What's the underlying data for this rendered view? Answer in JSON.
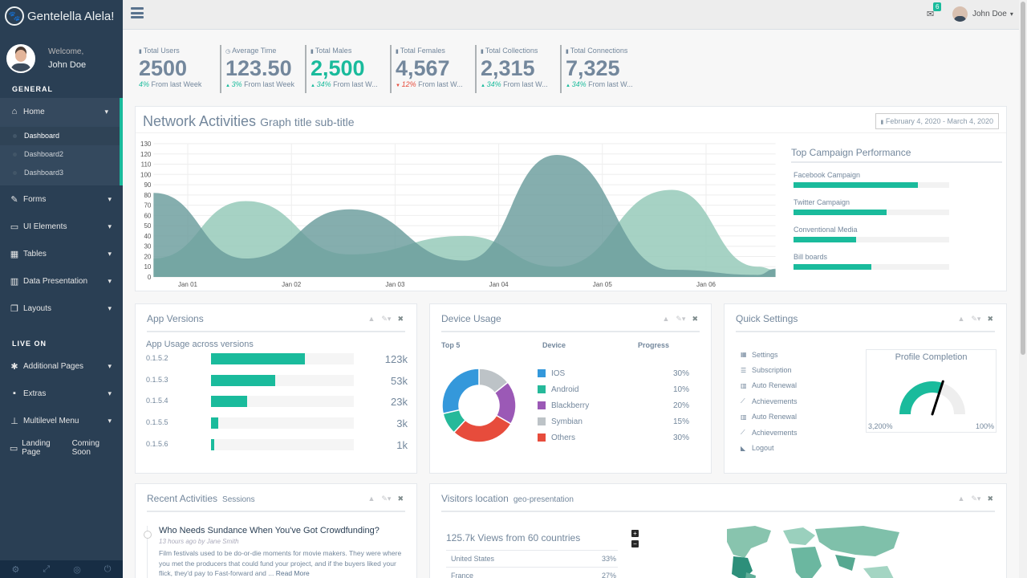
{
  "sidebar": {
    "brand": "Gentelella Alela!",
    "welcome": "Welcome,",
    "user": "John Doe",
    "section_general": "GENERAL",
    "section_live": "LIVE ON",
    "home": "Home",
    "sub_items": [
      "Dashboard",
      "Dashboard2",
      "Dashboard3"
    ],
    "general_items": [
      "Forms",
      "UI Elements",
      "Tables",
      "Data Presentation",
      "Layouts"
    ],
    "live_items": [
      "Additional Pages",
      "Extras",
      "Multilevel Menu"
    ],
    "landing": "Landing Page",
    "landing_badge": "Coming Soon"
  },
  "topnav": {
    "mail_count": "6",
    "user": "John Doe"
  },
  "tiles": [
    {
      "label": "Total Users",
      "icon": "user-icon",
      "count": "2500",
      "pct": "4%",
      "bottom": " From last Week",
      "dir": "none",
      "green": false
    },
    {
      "label": "Average Time",
      "icon": "clock-icon",
      "count": "123.50",
      "pct": "3%",
      "bottom": " From last Week",
      "dir": "up",
      "green": false
    },
    {
      "label": "Total Males",
      "icon": "user-icon",
      "count": "2,500",
      "pct": "34%",
      "bottom": " From last W...",
      "dir": "up",
      "green": true
    },
    {
      "label": "Total Females",
      "icon": "user-icon",
      "count": "4,567",
      "pct": "12%",
      "bottom": " From last W...",
      "dir": "down",
      "green": false
    },
    {
      "label": "Total Collections",
      "icon": "user-icon",
      "count": "2,315",
      "pct": "34%",
      "bottom": " From last W...",
      "dir": "up",
      "green": false
    },
    {
      "label": "Total Connections",
      "icon": "user-icon",
      "count": "7,325",
      "pct": "34%",
      "bottom": " From last W...",
      "dir": "up",
      "green": false
    }
  ],
  "network": {
    "title": "Network Activities",
    "subtitle": "Graph title sub-title",
    "daterange": "February 4, 2020 - March 4, 2020"
  },
  "chart_data": {
    "type": "area",
    "title": "",
    "xlabel": "",
    "ylabel": "",
    "ylim": [
      0,
      130
    ],
    "y_ticks": [
      0,
      10,
      20,
      30,
      40,
      50,
      60,
      70,
      80,
      90,
      100,
      110,
      120,
      130
    ],
    "x_tick_labels": [
      "Jan 01",
      "Jan 02",
      "Jan 03",
      "Jan 04",
      "Jan 05",
      "Jan 06"
    ],
    "grid": true,
    "series": [
      {
        "color": "#96caba",
        "points": [
          [
            -0.33,
            18
          ],
          [
            0.56,
            74
          ],
          [
            1.56,
            22
          ],
          [
            2.67,
            40
          ],
          [
            3.56,
            10
          ],
          [
            4.67,
            85
          ],
          [
            5.5,
            10
          ],
          [
            5.67,
            7
          ]
        ]
      },
      {
        "color": "#6a9c9c",
        "points": [
          [
            -0.33,
            82
          ],
          [
            0.56,
            18
          ],
          [
            1.56,
            66
          ],
          [
            2.67,
            16
          ],
          [
            3.56,
            119
          ],
          [
            4.67,
            7
          ],
          [
            5.5,
            2
          ],
          [
            5.67,
            8
          ]
        ]
      }
    ]
  },
  "campaign": {
    "title": "Top Campaign Performance",
    "items": [
      {
        "label": "Facebook Campaign",
        "value": 80
      },
      {
        "label": "Twitter Campaign",
        "value": 60
      },
      {
        "label": "Conventional Media",
        "value": 40
      },
      {
        "label": "Bill boards",
        "value": 50
      }
    ]
  },
  "app_versions": {
    "title": "App Versions",
    "subtitle": "App Usage across versions",
    "items": [
      {
        "version": "0.1.5.2",
        "value": "123k",
        "pct": 66
      },
      {
        "version": "0.1.5.3",
        "value": "53k",
        "pct": 45
      },
      {
        "version": "0.1.5.4",
        "value": "23k",
        "pct": 25
      },
      {
        "version": "0.1.5.5",
        "value": "3k",
        "pct": 5
      },
      {
        "version": "0.1.5.6",
        "value": "1k",
        "pct": 2
      }
    ]
  },
  "device_usage": {
    "title": "Device Usage",
    "col_top": "Top 5",
    "col_device": "Device",
    "col_progress": "Progress",
    "items": [
      {
        "name": "IOS",
        "pct": "30%",
        "value": 30,
        "color": "#3498db"
      },
      {
        "name": "Android",
        "pct": "10%",
        "value": 10,
        "color": "#26b99a"
      },
      {
        "name": "Blackberry",
        "pct": "20%",
        "value": 20,
        "color": "#9b59b6"
      },
      {
        "name": "Symbian",
        "pct": "15%",
        "value": 15,
        "color": "#bdc3c7"
      },
      {
        "name": "Others",
        "pct": "30%",
        "value": 30,
        "color": "#e74c3c"
      }
    ]
  },
  "quick_settings": {
    "title": "Quick Settings",
    "items": [
      {
        "label": "Settings",
        "icon": "calendar-icon"
      },
      {
        "label": "Subscription",
        "icon": "list-icon"
      },
      {
        "label": "Auto Renewal",
        "icon": "bar-chart-icon"
      },
      {
        "label": "Achievements",
        "icon": "line-chart-icon"
      },
      {
        "label": "Auto Renewal",
        "icon": "bar-chart-icon"
      },
      {
        "label": "Achievements",
        "icon": "line-chart-icon"
      },
      {
        "label": "Logout",
        "icon": "area-chart-icon"
      }
    ],
    "profile_title": "Profile Completion",
    "gauge_min": "3,200%",
    "gauge_max": "100%",
    "gauge_level": 0.6
  },
  "recent": {
    "title": "Recent Activities",
    "subtitle": "Sessions",
    "item_title": "Who Needs Sundance When You've Got Crowdfunding?",
    "item_byline": "13 hours ago by Jane Smith",
    "item_text": "Film festivals used to be do-or-die moments for movie makers. They were where you met the producers that could fund your project, and if the buyers liked your flick, they'd pay to Fast-forward and ...",
    "item_more": "Read More"
  },
  "visitors": {
    "title": "Visitors location",
    "subtitle": "geo-presentation",
    "headline": "125.7k Views from 60 countries",
    "rows": [
      {
        "country": "United States",
        "pct": "33%"
      },
      {
        "country": "France",
        "pct": "27%"
      }
    ],
    "zoom_in": "+",
    "zoom_out": "−"
  }
}
